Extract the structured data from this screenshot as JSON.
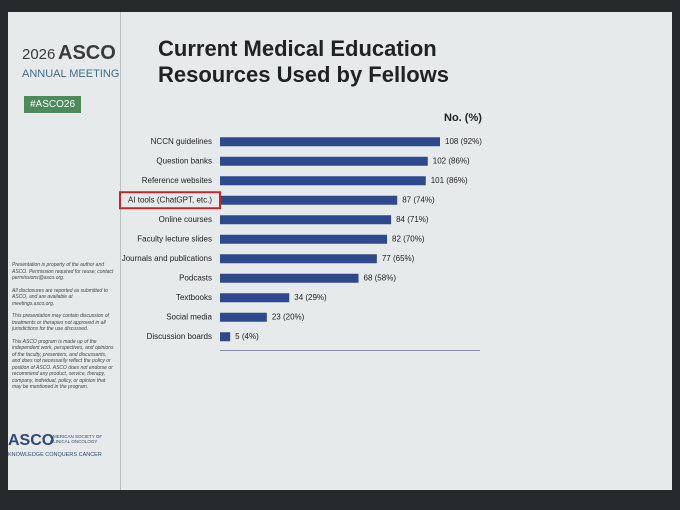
{
  "meeting": {
    "year": "2026",
    "org": "ASCO",
    "event": "ANNUAL MEETING",
    "hashtag": "#ASCO26"
  },
  "disclaimers": [
    "Presentation is property of the author and ASCO. Permission required for reuse; contact permissions@asco.org.",
    "All disclosures are reported as submitted to ASCO, and are available at meetings.asco.org.",
    "This presentation may contain discussion of treatments or therapies not approved in all jurisdictions for the use discussed.",
    "This ASCO program is made up of the independent work, perspectives, and opinions of the faculty, presenters, and discussants, and does not necessarily reflect the policy or position of ASCO. ASCO does not endorse or recommend any product, service, therapy, company, individual, policy, or opinion that may be mentioned in the program."
  ],
  "footer": {
    "logo": "ASCO",
    "society": "AMERICAN SOCIETY OF CLINICAL ONCOLOGY",
    "tagline": "KNOWLEDGE CONQUERS CANCER"
  },
  "chart_data": {
    "type": "hbar",
    "title": "Current Medical Education Resources Used by Fellows",
    "value_header": "No. (%)",
    "categories": [
      "NCCN guidelines",
      "Question banks",
      "Reference websites",
      "AI tools (ChatGPT, etc.)",
      "Online courses",
      "Faculty lecture slides",
      "Journals and publications",
      "Podcasts",
      "Textbooks",
      "Social media",
      "Discussion boards"
    ],
    "values": [
      108,
      102,
      101,
      87,
      84,
      82,
      77,
      68,
      34,
      23,
      5
    ],
    "value_labels": [
      "108 (92%)",
      "102 (86%)",
      "101 (86%)",
      "87 (74%)",
      "84 (71%)",
      "82 (70%)",
      "77 (65%)",
      "68 (58%)",
      "34 (29%)",
      "23 (20%)",
      "5 (4%)"
    ],
    "color": "#2f4a8c",
    "highlight": {
      "category": 3,
      "color": "#c0282d"
    }
  }
}
